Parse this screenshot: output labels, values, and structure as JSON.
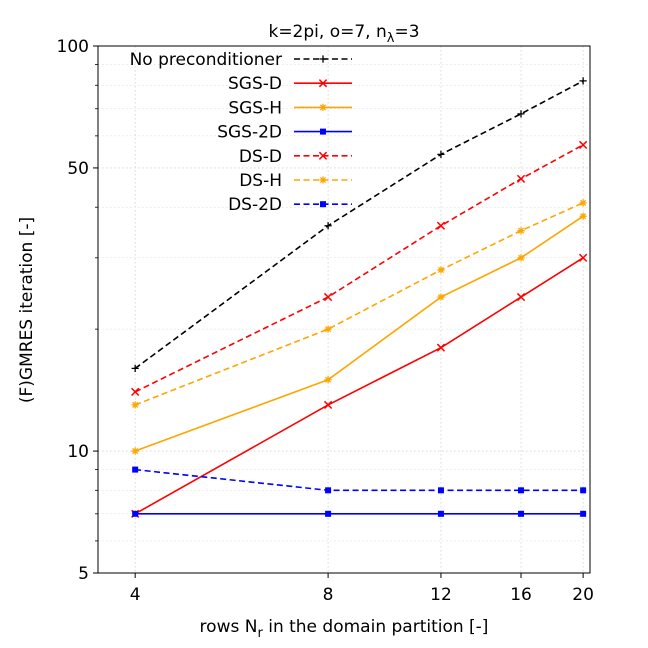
{
  "chart_data": {
    "type": "line",
    "title_prefix": "k=2pi, o=7, n",
    "title_sub": "λ",
    "title_suffix": "=3",
    "title": "k=2pi, o=7, nλ=3",
    "xlabel_prefix": "rows N",
    "xlabel_sub": "r",
    "xlabel_suffix": " in the domain partition [-]",
    "xlabel": "rows Nr in the domain partition [-]",
    "ylabel": "(F)GMRES iteration [-]",
    "x": [
      4,
      8,
      12,
      16,
      20
    ],
    "xticks": [
      "4",
      "8",
      "12",
      "16",
      "20"
    ],
    "yticks": [
      5,
      10,
      50,
      100
    ],
    "ytick_labels": [
      "5",
      "10",
      "50",
      "100"
    ],
    "xlim": [
      3.5,
      20.5
    ],
    "ylim": [
      5,
      100
    ],
    "xscale": "log",
    "yscale": "log",
    "grid": true,
    "legend_position": "top-left",
    "series": [
      {
        "name": "No preconditioner",
        "color": "#000000",
        "linestyle": "dashed",
        "marker": "plus",
        "values": [
          16,
          36,
          54,
          68,
          82
        ]
      },
      {
        "name": "SGS-D",
        "color": "#ff0000",
        "linestyle": "solid",
        "marker": "x",
        "values": [
          7,
          13,
          18,
          24,
          30
        ]
      },
      {
        "name": "SGS-H",
        "color": "#ffa500",
        "linestyle": "solid",
        "marker": "star",
        "values": [
          10,
          15,
          24,
          30,
          38
        ]
      },
      {
        "name": "SGS-2D",
        "color": "#0000ff",
        "linestyle": "solid",
        "marker": "square",
        "values": [
          7,
          7,
          7,
          7,
          7
        ]
      },
      {
        "name": "DS-D",
        "color": "#ff0000",
        "linestyle": "dashed",
        "marker": "x",
        "values": [
          14,
          24,
          36,
          47,
          57
        ]
      },
      {
        "name": "DS-H",
        "color": "#ffa500",
        "linestyle": "dashed",
        "marker": "star",
        "values": [
          13,
          20,
          28,
          35,
          41
        ]
      },
      {
        "name": "DS-2D",
        "color": "#0000ff",
        "linestyle": "dashed",
        "marker": "square",
        "values": [
          9,
          8,
          8,
          8,
          8
        ]
      }
    ]
  }
}
